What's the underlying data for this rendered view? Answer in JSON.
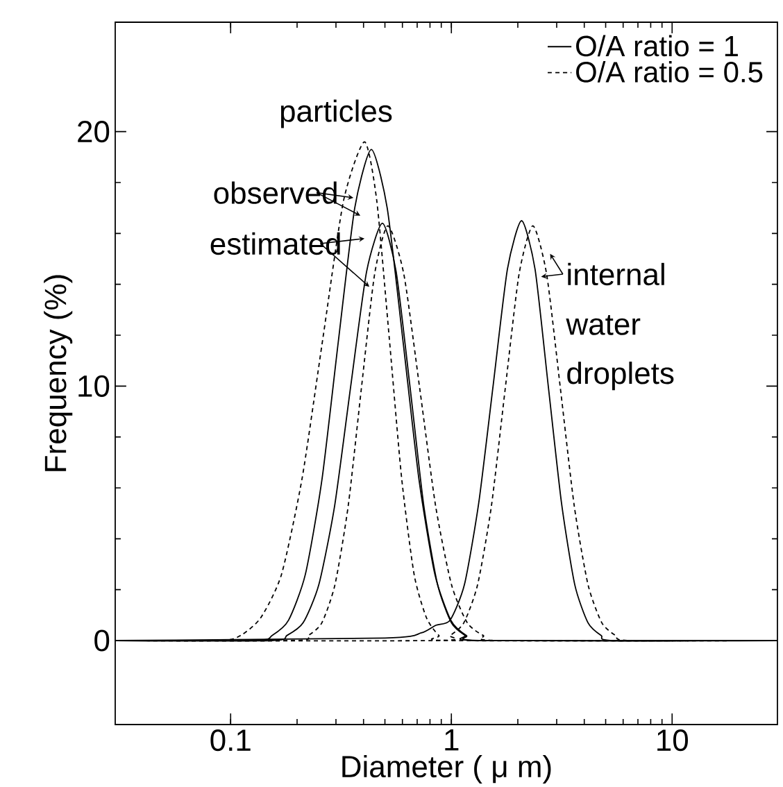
{
  "chart_data": {
    "type": "line",
    "xlabel": "Diameter ( μ m)",
    "ylabel": "Frequency (%)",
    "log": "x",
    "xlim": [
      0.03,
      30
    ],
    "ylim": [
      -3.3,
      24.3
    ],
    "xticks": [
      0.1,
      1,
      10
    ],
    "yticks": [
      0,
      10,
      20
    ],
    "legend": "top right",
    "marker": "none",
    "annotations": [
      "particles",
      "observed",
      "estimated",
      "internal",
      "water",
      "droplets"
    ],
    "series": [
      {
        "name": "O/A ratio = 1",
        "color": "#000000",
        "line_style": "solid",
        "x": [
          0.03,
          0.13,
          0.154,
          0.183,
          0.218,
          0.259,
          0.307,
          0.365,
          0.434,
          0.512,
          0.605,
          0.714,
          0.842,
          0.994,
          1.17,
          1.385,
          30
        ],
        "values": [
          0,
          0.0,
          0.2,
          0.8,
          2.6,
          6.3,
          11.7,
          17.0,
          19.3,
          17.0,
          11.7,
          6.3,
          2.6,
          0.8,
          0.2,
          0.0,
          0
        ]
      },
      {
        "name": "O/A ratio = 0.5",
        "color": "#000000",
        "line_style": "dashed",
        "x": [
          0.03,
          0.089,
          0.111,
          0.137,
          0.17,
          0.211,
          0.262,
          0.325,
          0.404,
          0.459,
          0.523,
          0.595,
          0.678,
          0.771,
          0.878,
          1.0,
          30
        ],
        "values": [
          0,
          0.0,
          0.2,
          0.9,
          2.6,
          6.4,
          11.9,
          17.3,
          19.6,
          17.3,
          11.9,
          6.4,
          2.6,
          0.9,
          0.2,
          0.0,
          0
        ]
      },
      {
        "color": "#000000",
        "line_style": "solid",
        "x": [
          0.03,
          0.153,
          0.18,
          0.213,
          0.251,
          0.296,
          0.35,
          0.413,
          0.487,
          0.562,
          0.649,
          0.75,
          0.866,
          1.0,
          1.155,
          1.334,
          30
        ],
        "values": [
          0,
          0.0,
          0.2,
          0.7,
          2.2,
          5.3,
          10.0,
          14.5,
          16.4,
          14.5,
          10.0,
          5.3,
          2.2,
          0.7,
          0.2,
          0.0,
          0
        ]
      },
      {
        "color": "#000000",
        "line_style": "dashed",
        "x": [
          0.03,
          0.196,
          0.225,
          0.259,
          0.297,
          0.341,
          0.391,
          0.449,
          0.516,
          0.609,
          0.719,
          0.848,
          1.001,
          1.18,
          1.394,
          1.646,
          30
        ],
        "values": [
          0,
          0.0,
          0.2,
          0.7,
          2.2,
          5.3,
          9.9,
          14.4,
          16.3,
          14.4,
          9.9,
          5.3,
          2.2,
          0.7,
          0.2,
          0.0,
          0
        ]
      },
      {
        "color": "#000000",
        "line_style": "solid",
        "x": [
          0.03,
          0.5,
          0.73,
          0.85,
          0.986,
          1.146,
          1.33,
          1.545,
          1.795,
          2.08,
          2.393,
          2.748,
          3.155,
          3.622,
          4.159,
          4.775,
          5.483,
          30
        ],
        "values": [
          0,
          0.1,
          0.3,
          0.6,
          0.8,
          2.2,
          5.4,
          10.0,
          14.6,
          16.5,
          14.6,
          10.0,
          5.4,
          2.2,
          0.7,
          0.2,
          0.0,
          0
        ]
      },
      {
        "color": "#000000",
        "line_style": "dashed",
        "x": [
          0.03,
          0.854,
          0.986,
          1.139,
          1.315,
          1.519,
          1.754,
          2.026,
          2.34,
          2.701,
          3.119,
          3.602,
          4.159,
          4.803,
          5.546,
          6.405,
          30
        ],
        "values": [
          0,
          0.0,
          0.2,
          0.7,
          2.2,
          5.3,
          9.9,
          14.4,
          16.3,
          14.4,
          9.9,
          5.3,
          2.2,
          0.7,
          0.2,
          0.0,
          0
        ]
      }
    ]
  }
}
